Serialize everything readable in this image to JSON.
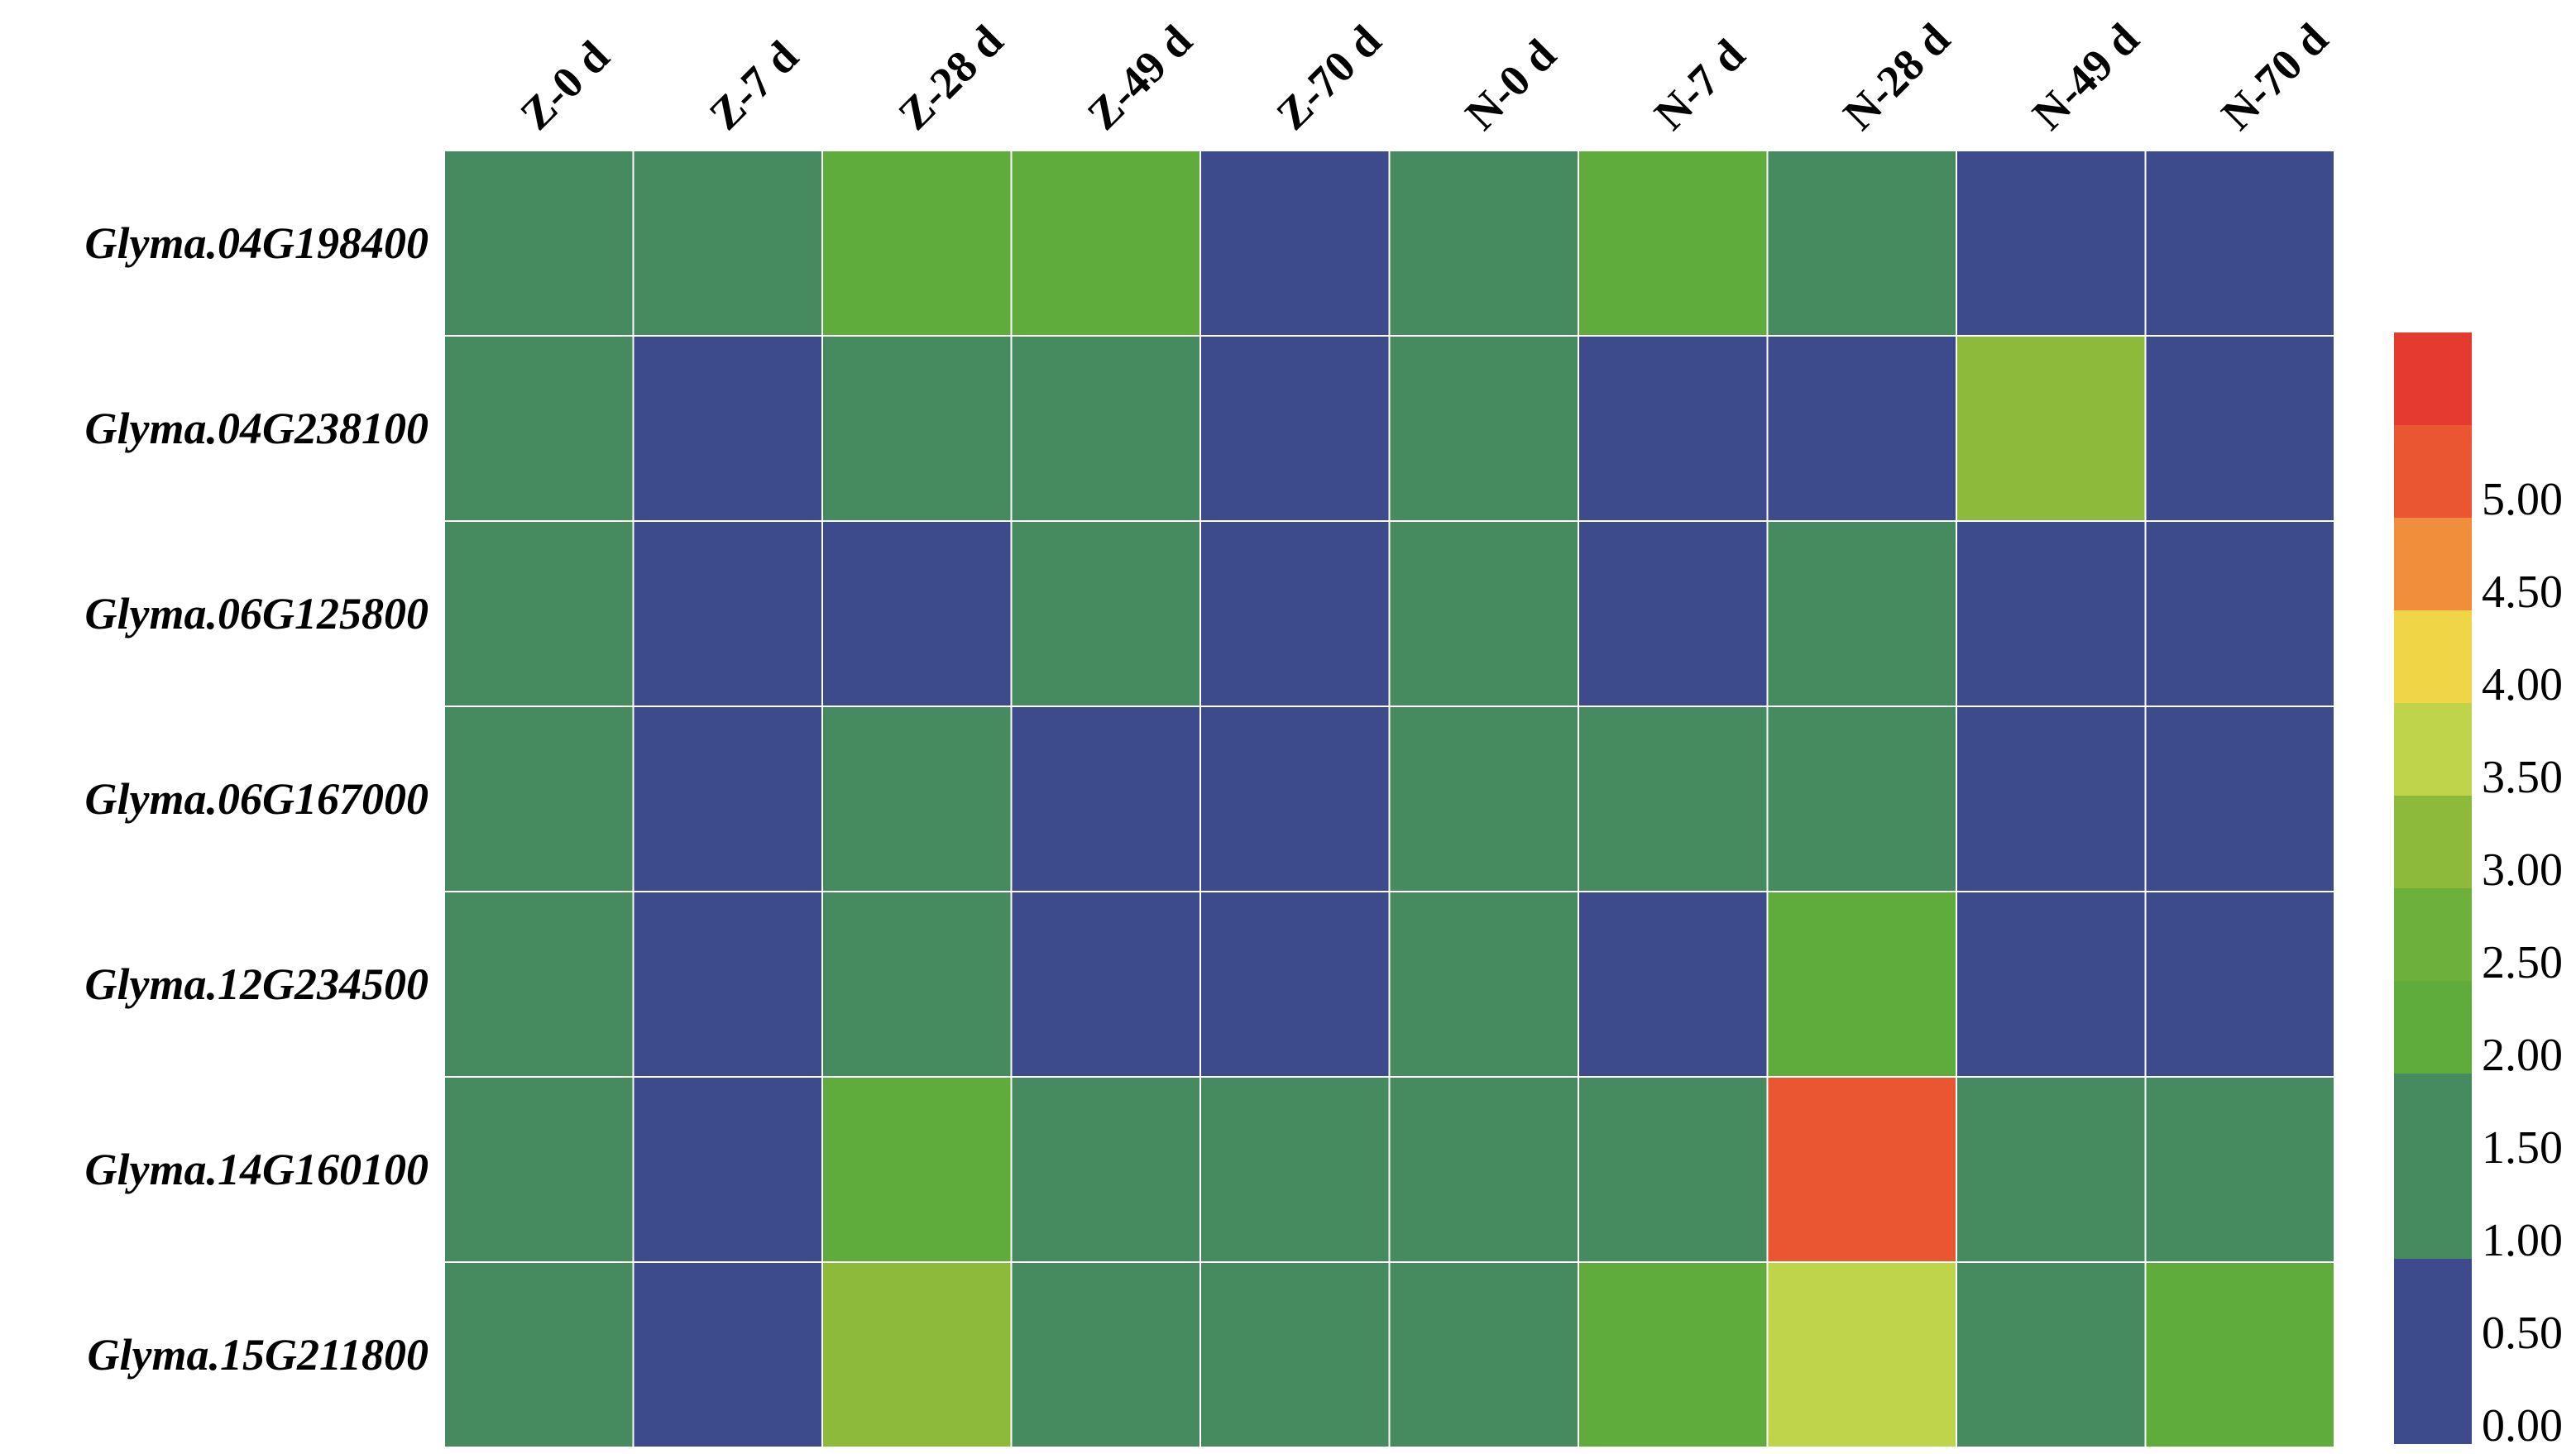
{
  "chart_data": {
    "type": "heatmap",
    "title": "",
    "xlabel": "",
    "ylabel": "",
    "columns": [
      "Z-0 d",
      "Z-7 d",
      "Z-28 d",
      "Z-49 d",
      "Z-70 d",
      "N-0 d",
      "N-7 d",
      "N-28 d",
      "N-49 d",
      "N-70 d"
    ],
    "rows": [
      "Glyma.04G198400",
      "Glyma.04G238100",
      "Glyma.06G125800",
      "Glyma.06G167000",
      "Glyma.12G234500",
      "Glyma.14G160100",
      "Glyma.15G211800"
    ],
    "values": [
      [
        1.0,
        1.0,
        2.3,
        2.3,
        0.3,
        1.0,
        2.3,
        1.0,
        0.3,
        0.3
      ],
      [
        1.0,
        0.3,
        1.0,
        1.0,
        0.3,
        1.0,
        0.3,
        0.3,
        3.2,
        0.3
      ],
      [
        1.0,
        0.3,
        0.3,
        1.0,
        0.3,
        1.0,
        0.3,
        1.8,
        0.3,
        0.3
      ],
      [
        1.0,
        0.3,
        1.8,
        0.3,
        0.3,
        1.0,
        1.8,
        1.0,
        0.3,
        0.3
      ],
      [
        1.0,
        0.3,
        1.0,
        0.3,
        0.3,
        1.0,
        0.3,
        2.3,
        0.3,
        0.3
      ],
      [
        1.0,
        0.3,
        2.3,
        1.8,
        1.8,
        1.0,
        1.0,
        5.2,
        1.0,
        1.8
      ],
      [
        1.0,
        0.3,
        3.2,
        1.0,
        1.8,
        1.0,
        2.3,
        3.7,
        1.8,
        2.3
      ]
    ],
    "color_scale": {
      "min": 0.0,
      "max": 5.5,
      "step": 0.5,
      "tick_labels": [
        "0.00",
        "0.50",
        "1.00",
        "1.50",
        "2.00",
        "2.50",
        "3.00",
        "3.50",
        "4.00",
        "4.50",
        "5.00"
      ],
      "colors": [
        "#3d4a8c",
        "#3d4a8c",
        "#458b5f",
        "#458b5f",
        "#5fab3b",
        "#6db03b",
        "#8dba3b",
        "#bfd44a",
        "#f0d647",
        "#f08e3c",
        "#ea5532",
        "#e53a2f"
      ]
    },
    "legend_position": "right",
    "grid": true,
    "grid_color": "#ffffff"
  }
}
